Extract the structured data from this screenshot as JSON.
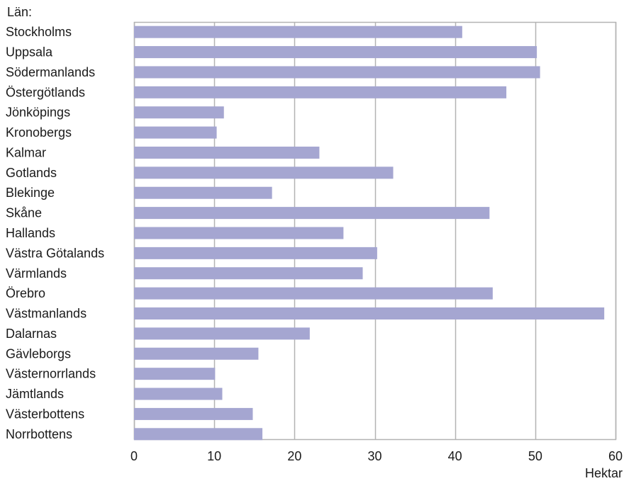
{
  "chart_data": {
    "type": "bar",
    "orientation": "horizontal",
    "categories": [
      "Stockholms",
      "Uppsala",
      "Södermanlands",
      "Östergötlands",
      "Jönköpings",
      "Kronobergs",
      "Kalmar",
      "Gotlands",
      "Blekinge",
      "Skåne",
      "Hallands",
      "Västra Götalands",
      "Värmlands",
      "Örebro",
      "Västmanlands",
      "Dalarnas",
      "Gävleborgs",
      "Västernorrlands",
      "Jämtlands",
      "Västerbottens",
      "Norrbottens"
    ],
    "values": [
      40.9,
      50.2,
      50.6,
      46.4,
      11.2,
      10.3,
      23.1,
      32.3,
      17.2,
      44.3,
      26.1,
      30.3,
      28.5,
      44.7,
      58.6,
      21.9,
      15.5,
      10.1,
      11.0,
      14.8,
      16.0
    ],
    "category_axis_title": "Län:",
    "value_axis_title": "Hektar",
    "xlim": [
      0,
      60
    ],
    "ticks": [
      0,
      10,
      20,
      30,
      40,
      50,
      60
    ],
    "grid": "vertical",
    "bar_color": "#a5a6d1",
    "grid_color": "#b3b3b3"
  }
}
